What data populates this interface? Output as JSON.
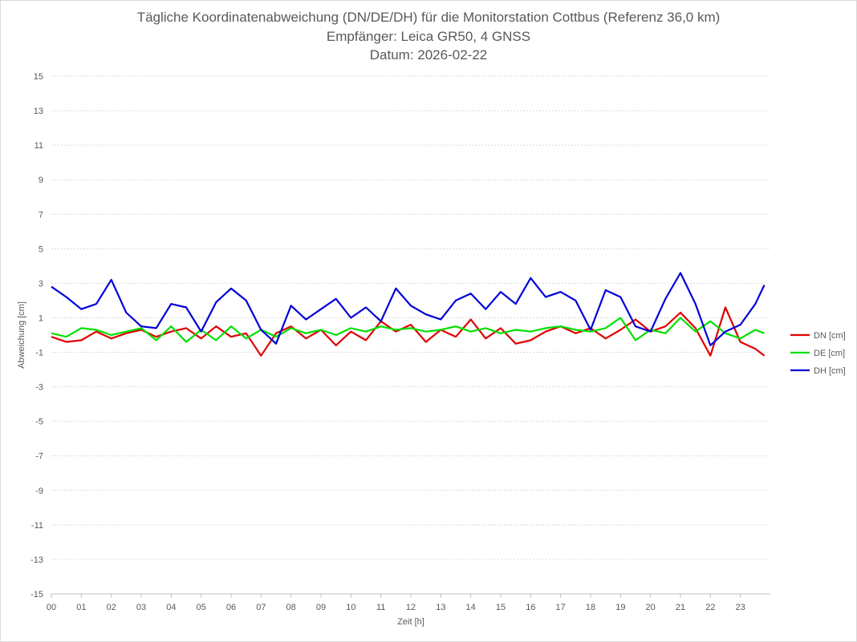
{
  "chart_data": {
    "type": "line",
    "title": "Tägliche Koordinatenabweichung (DN/DE/DH) für die Monitorstation Cottbus (Referenz 36,0 km)",
    "subtitle": "Empfänger: Leica GR50, 4 GNSS",
    "date_line": "Datum: 2026-02-22",
    "xlabel": "Zeit [h]",
    "ylabel": "Abweichung [cm]",
    "xlim": [
      0,
      24
    ],
    "ylim": [
      -15,
      15
    ],
    "x_ticks": [
      "00",
      "01",
      "02",
      "03",
      "04",
      "05",
      "06",
      "07",
      "08",
      "09",
      "10",
      "11",
      "12",
      "13",
      "14",
      "15",
      "16",
      "17",
      "18",
      "19",
      "20",
      "21",
      "22",
      "23"
    ],
    "y_ticks": [
      15,
      13,
      11,
      9,
      7,
      5,
      3,
      1,
      -1,
      -3,
      -5,
      -7,
      -9,
      -11,
      -13,
      -15
    ],
    "grid": true,
    "legend_position": "right",
    "colors": {
      "DN": "#e00000",
      "DE": "#00e000",
      "DH": "#0000d8",
      "grid": "#d9d9d9",
      "axis": "#bfbfbf"
    },
    "series": [
      {
        "name": "DN [cm]",
        "x": [
          0,
          0.5,
          1,
          1.5,
          2,
          2.5,
          3,
          3.5,
          4,
          4.5,
          5,
          5.5,
          6,
          6.5,
          7,
          7.5,
          8,
          8.5,
          9,
          9.5,
          10,
          10.5,
          11,
          11.5,
          12,
          12.5,
          13,
          13.5,
          14,
          14.5,
          15,
          15.5,
          16,
          16.5,
          17,
          17.5,
          18,
          18.5,
          19,
          19.5,
          20,
          20.5,
          21,
          21.5,
          22,
          22.5,
          23,
          23.5,
          23.8
        ],
        "y": [
          -0.1,
          -0.4,
          -0.3,
          0.2,
          -0.2,
          0.1,
          0.3,
          -0.1,
          0.2,
          0.4,
          -0.2,
          0.5,
          -0.1,
          0.1,
          -1.2,
          0.1,
          0.5,
          -0.2,
          0.3,
          -0.6,
          0.2,
          -0.3,
          0.8,
          0.2,
          0.6,
          -0.4,
          0.3,
          -0.1,
          0.9,
          -0.2,
          0.4,
          -0.5,
          -0.3,
          0.2,
          0.5,
          0.1,
          0.4,
          -0.2,
          0.3,
          0.9,
          0.2,
          0.5,
          1.3,
          0.4,
          -1.2,
          1.6,
          -0.4,
          -0.8,
          -1.2
        ]
      },
      {
        "name": "DE [cm]",
        "x": [
          0,
          0.5,
          1,
          1.5,
          2,
          2.5,
          3,
          3.5,
          4,
          4.5,
          5,
          5.5,
          6,
          6.5,
          7,
          7.5,
          8,
          8.5,
          9,
          9.5,
          10,
          10.5,
          11,
          11.5,
          12,
          12.5,
          13,
          13.5,
          14,
          14.5,
          15,
          15.5,
          16,
          16.5,
          17,
          17.5,
          18,
          18.5,
          19,
          19.5,
          20,
          20.5,
          21,
          21.5,
          22,
          22.5,
          23,
          23.5,
          23.8
        ],
        "y": [
          0.1,
          -0.1,
          0.4,
          0.3,
          0.0,
          0.2,
          0.4,
          -0.3,
          0.5,
          -0.4,
          0.3,
          -0.3,
          0.5,
          -0.2,
          0.3,
          -0.1,
          0.4,
          0.1,
          0.3,
          0.0,
          0.4,
          0.2,
          0.5,
          0.3,
          0.4,
          0.2,
          0.3,
          0.5,
          0.2,
          0.4,
          0.1,
          0.3,
          0.2,
          0.4,
          0.5,
          0.3,
          0.2,
          0.4,
          1.0,
          -0.3,
          0.3,
          0.1,
          1.0,
          0.2,
          0.8,
          0.1,
          -0.2,
          0.3,
          0.1
        ]
      },
      {
        "name": "DH [cm]",
        "x": [
          0,
          0.5,
          1,
          1.5,
          2,
          2.5,
          3,
          3.5,
          4,
          4.5,
          5,
          5.5,
          6,
          6.5,
          7,
          7.5,
          8,
          8.5,
          9,
          9.5,
          10,
          10.5,
          11,
          11.5,
          12,
          12.5,
          13,
          13.5,
          14,
          14.5,
          15,
          15.5,
          16,
          16.5,
          17,
          17.5,
          18,
          18.5,
          19,
          19.5,
          20,
          20.5,
          21,
          21.5,
          22,
          22.5,
          23,
          23.5,
          23.8
        ],
        "y": [
          2.8,
          2.2,
          1.5,
          1.8,
          3.2,
          1.3,
          0.5,
          0.4,
          1.8,
          1.6,
          0.2,
          1.9,
          2.7,
          2.0,
          0.3,
          -0.5,
          1.7,
          0.9,
          1.5,
          2.1,
          1.0,
          1.6,
          0.8,
          2.7,
          1.7,
          1.2,
          0.9,
          2.0,
          2.4,
          1.5,
          2.5,
          1.8,
          3.3,
          2.2,
          2.5,
          2.0,
          0.3,
          2.6,
          2.2,
          0.5,
          0.2,
          2.1,
          3.6,
          1.8,
          -0.6,
          0.2,
          0.6,
          1.8,
          2.9
        ]
      }
    ]
  }
}
